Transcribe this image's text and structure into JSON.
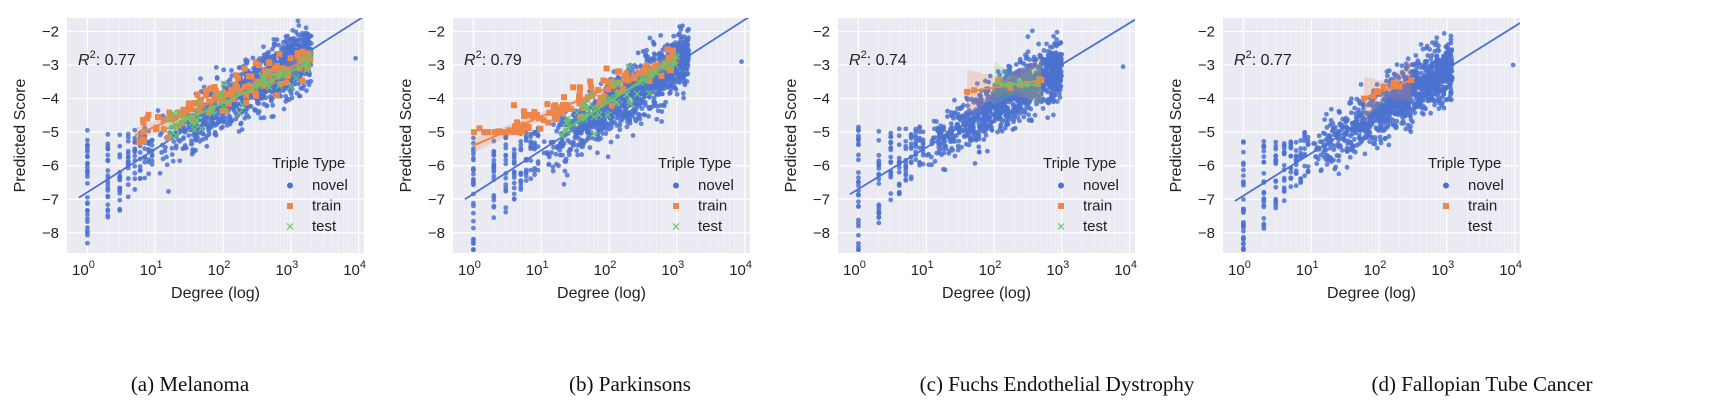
{
  "chart_data": [
    {
      "type": "scatter",
      "caption": "(a) Melanoma",
      "r2_label": ": 0.77",
      "xlabel": "Degree (log)",
      "ylabel": "Predicted Score",
      "xscale": "log",
      "xlim": [
        0.5,
        12000
      ],
      "ylim": [
        -8.6,
        -1.6
      ],
      "xticks": [
        1,
        10,
        100,
        1000,
        10000
      ],
      "yticks": [
        -8,
        -7,
        -6,
        -5,
        -4,
        -3,
        -2
      ],
      "grid": true,
      "legend": {
        "title": "Triple Type",
        "entries": [
          "novel",
          "train",
          "test"
        ],
        "placement": "bottom-right"
      },
      "fit_line": {
        "x": [
          0.75,
          12000
        ],
        "y": [
          -6.95,
          -1.55
        ]
      },
      "series": [
        {
          "name": "novel",
          "color": "#4c72d0",
          "marker": "circle",
          "summary": "dense cloud, degree 1–2000, score roughly -8.2 to -2.6; isolated point at degree ~9000, score -2.8"
        },
        {
          "name": "train",
          "color": "#ee8549",
          "marker": "square",
          "fit_start": [
            5,
            -5.1
          ],
          "fit_end": [
            2000,
            -2.8
          ],
          "x_range": [
            5,
            2000
          ],
          "y_range": [
            -5.3,
            -2.4
          ]
        },
        {
          "name": "test",
          "color": "#6ac36a",
          "marker": "x",
          "fit_start": [
            15,
            -4.9
          ],
          "fit_end": [
            2000,
            -2.9
          ],
          "x_range": [
            15,
            2000
          ],
          "y_range": [
            -5.1,
            -2.7
          ]
        }
      ]
    },
    {
      "type": "scatter",
      "caption": "(b) Parkinsons",
      "r2_label": ": 0.79",
      "xlabel": "Degree (log)",
      "ylabel": "Predicted Score",
      "xscale": "log",
      "xlim": [
        0.5,
        12000
      ],
      "ylim": [
        -8.6,
        -1.6
      ],
      "xticks": [
        1,
        10,
        100,
        1000,
        10000
      ],
      "yticks": [
        -8,
        -7,
        -6,
        -5,
        -4,
        -3,
        -2
      ],
      "grid": true,
      "legend": {
        "title": "Triple Type",
        "entries": [
          "novel",
          "train",
          "test"
        ],
        "placement": "bottom-right"
      },
      "fit_line": {
        "x": [
          0.75,
          12000
        ],
        "y": [
          -7.0,
          -1.55
        ]
      },
      "series": [
        {
          "name": "novel",
          "color": "#4c72d0",
          "marker": "circle",
          "summary": "dense cloud, degree 1–1500, score roughly -8.5 to -2.7; isolated point at degree ~9000, score -2.9"
        },
        {
          "name": "train",
          "color": "#ee8549",
          "marker": "square",
          "fit_start": [
            1,
            -5.4
          ],
          "fit_end": [
            1000,
            -2.8
          ],
          "x_range": [
            1,
            1000
          ],
          "y_range": [
            -5.0,
            -2.5
          ]
        },
        {
          "name": "test",
          "color": "#6ac36a",
          "marker": "x",
          "fit_start": [
            20,
            -5.0
          ],
          "fit_end": [
            1000,
            -2.8
          ],
          "x_range": [
            20,
            1000
          ],
          "y_range": [
            -5.1,
            -2.7
          ]
        }
      ]
    },
    {
      "type": "scatter",
      "caption": "(c) Fuchs Endothelial Dystrophy",
      "r2_label": ": 0.74",
      "xlabel": "Degree (log)",
      "ylabel": "Predicted Score",
      "xscale": "log",
      "xlim": [
        0.5,
        12000
      ],
      "ylim": [
        -8.6,
        -1.6
      ],
      "xticks": [
        1,
        10,
        100,
        1000,
        10000
      ],
      "yticks": [
        -8,
        -7,
        -6,
        -5,
        -4,
        -3,
        -2
      ],
      "grid": true,
      "legend": {
        "title": "Triple Type",
        "entries": [
          "novel",
          "train",
          "test"
        ],
        "placement": "bottom-right"
      },
      "fit_line": {
        "x": [
          0.75,
          12000
        ],
        "y": [
          -6.85,
          -1.65
        ]
      },
      "series": [
        {
          "name": "novel",
          "color": "#4c72d0",
          "marker": "circle",
          "summary": "dense cloud, degree 1–1000, score roughly -8.4 to -2.9; isolated point at degree ~8000, score -3.05"
        },
        {
          "name": "train",
          "color": "#ee8549",
          "marker": "square",
          "fit_start": [
            40,
            -3.8
          ],
          "fit_end": [
            500,
            -3.45
          ],
          "x_range": [
            40,
            500
          ],
          "y_range": [
            -3.9,
            -3.4
          ]
        },
        {
          "name": "test",
          "color": "#6ac36a",
          "marker": "x",
          "fit_start": [
            100,
            -3.55
          ],
          "fit_end": [
            500,
            -3.6
          ],
          "x_range": [
            100,
            500
          ],
          "y_range": [
            -3.7,
            -3.5
          ]
        }
      ]
    },
    {
      "type": "scatter",
      "caption": "(d) Fallopian Tube Cancer",
      "r2_label": ": 0.77",
      "xlabel": "Degree (log)",
      "ylabel": "Predicted Score",
      "xscale": "log",
      "xlim": [
        0.5,
        12000
      ],
      "ylim": [
        -8.6,
        -1.6
      ],
      "xticks": [
        1,
        10,
        100,
        1000,
        10000
      ],
      "yticks": [
        -8,
        -7,
        -6,
        -5,
        -4,
        -3,
        -2
      ],
      "grid": true,
      "legend": {
        "title": "Triple Type",
        "entries": [
          "novel",
          "train",
          "test"
        ],
        "placement": "bottom-right"
      },
      "fit_line": {
        "x": [
          0.75,
          12000
        ],
        "y": [
          -7.05,
          -1.75
        ]
      },
      "series": [
        {
          "name": "novel",
          "color": "#4c72d0",
          "marker": "circle",
          "summary": "dense cloud, degree 1–1200, score roughly -8.5 to -2.9; isolated point at degree ~9500, score -3.0"
        },
        {
          "name": "train",
          "color": "#ee8549",
          "marker": "square",
          "fit_start": [
            60,
            -4.0
          ],
          "fit_end": [
            300,
            -3.45
          ],
          "x_range": [
            60,
            300
          ],
          "y_range": [
            -4.0,
            -3.45
          ]
        },
        {
          "name": "test",
          "color": "#6ac36a",
          "marker": "none",
          "fit_start": null,
          "fit_end": null,
          "x_range": null,
          "y_range": null
        }
      ]
    }
  ]
}
